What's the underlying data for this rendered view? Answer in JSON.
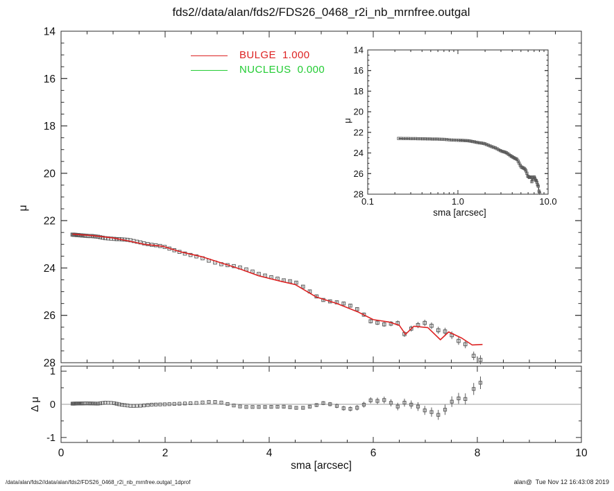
{
  "title": "fds2//data/alan/fds2/FDS26_0468_r2i_nb_mrnfree.outgal",
  "footer": {
    "left": "/data/alan/fds2//data/alan/fds2/FDS26_0468_r2i_nb_mrnfree.outgal_1dprof",
    "right": "alan@  Tue Nov 12 16:43:08 2019"
  },
  "legend": {
    "entries": [
      {
        "label": "BULGE  1.000",
        "color": "#dd2222"
      },
      {
        "label": "NUCLEUS  0.000",
        "color": "#22cc33"
      }
    ]
  },
  "colors": {
    "model": "#dd2222",
    "nucleus": "#22cc33",
    "points": "#5a5a5a",
    "inset_line": "#2a2a2a",
    "zero_line": "#999999",
    "frame": "#2b2b2b",
    "text": "#111111"
  },
  "chart_data": {
    "type": "line",
    "panels": [
      {
        "id": "main",
        "xlabel": "sma [arcsec]",
        "ylabel": "μ",
        "xlim": [
          0,
          10
        ],
        "ylim": [
          28,
          14
        ],
        "grid": false,
        "xticks": {
          "values": [
            0,
            2,
            4,
            6,
            8,
            10
          ],
          "labels": [
            "0",
            "2",
            "4",
            "6",
            "8",
            "10"
          ]
        },
        "yticks": {
          "values": [
            14,
            16,
            18,
            20,
            22,
            24,
            26,
            28
          ],
          "labels": [
            "14",
            "16",
            "18",
            "20",
            "22",
            "24",
            "26",
            "28"
          ]
        }
      },
      {
        "id": "inset",
        "xlabel": "sma [arcsec]",
        "ylabel": "μ",
        "xscale": "log",
        "xlim": [
          0.1,
          10
        ],
        "ylim": [
          28,
          14
        ],
        "grid": false,
        "xticks": {
          "values": [
            0.1,
            1.0,
            10.0
          ],
          "labels": [
            "0.1",
            "1.0",
            "10.0"
          ]
        },
        "yticks": {
          "values": [
            14,
            16,
            18,
            20,
            22,
            24,
            26,
            28
          ],
          "labels": [
            "14",
            "16",
            "18",
            "20",
            "22",
            "24",
            "26",
            "28"
          ]
        }
      },
      {
        "id": "residual",
        "xlabel": "sma [arcsec]",
        "ylabel": "Δ μ",
        "xlim": [
          0,
          10
        ],
        "ylim": [
          -1,
          1
        ],
        "grid": false,
        "xticks": {
          "values": [
            0,
            2,
            4,
            6,
            8,
            10
          ],
          "labels": [
            "0",
            "2",
            "4",
            "6",
            "8",
            "10"
          ]
        },
        "yticks": {
          "values": [
            -1,
            0,
            1
          ],
          "labels": [
            "-1",
            "0",
            "1"
          ]
        }
      }
    ],
    "series": {
      "model_bulge": {
        "name": "BULGE",
        "weight": "1.000",
        "sma": [
          0.22,
          0.6,
          1.0,
          1.3,
          1.6,
          1.95,
          2.3,
          2.7,
          3.1,
          3.45,
          3.8,
          4.2,
          4.5,
          4.9,
          5.3,
          5.7,
          6.0,
          6.3,
          6.5,
          6.62,
          6.78,
          7.05,
          7.29,
          7.45,
          7.7,
          7.9,
          8.1
        ],
        "mu": [
          22.57,
          22.63,
          22.73,
          22.86,
          23.0,
          23.08,
          23.32,
          23.52,
          23.8,
          24.05,
          24.33,
          24.55,
          24.7,
          25.22,
          25.5,
          25.85,
          26.18,
          26.28,
          26.42,
          26.8,
          26.46,
          26.52,
          27.03,
          26.7,
          26.96,
          27.25,
          27.23
        ]
      },
      "nucleus": {
        "name": "NUCLEUS",
        "weight": "0.000",
        "sma": [],
        "mu": []
      },
      "observed": {
        "sma": [
          0.22,
          0.234,
          0.249,
          0.265,
          0.282,
          0.3,
          0.319,
          0.339,
          0.36,
          0.383,
          0.407,
          0.433,
          0.46,
          0.489,
          0.52,
          0.553,
          0.588,
          0.625,
          0.665,
          0.707,
          0.752,
          0.8,
          0.85,
          0.904,
          0.961,
          1.022,
          1.068,
          1.117,
          1.168,
          1.221,
          1.276,
          1.334,
          1.395,
          1.458,
          1.525,
          1.594,
          1.667,
          1.743,
          1.822,
          1.905,
          1.992,
          2.082,
          2.177,
          2.276,
          2.38,
          2.488,
          2.601,
          2.72,
          2.84,
          2.96,
          3.08,
          3.2,
          3.32,
          3.44,
          3.56,
          3.68,
          3.8,
          3.92,
          4.04,
          4.16,
          4.28,
          4.4,
          4.52,
          4.65,
          4.78,
          4.91,
          5.04,
          5.17,
          5.3,
          5.43,
          5.56,
          5.69,
          5.82,
          5.95,
          6.08,
          6.21,
          6.34,
          6.47,
          6.6,
          6.73,
          6.86,
          6.99,
          7.12,
          7.25,
          7.38,
          7.51,
          7.64,
          7.77,
          7.93,
          8.06
        ],
        "mu": [
          22.59,
          22.59,
          22.6,
          22.6,
          22.6,
          22.61,
          22.61,
          22.61,
          22.62,
          22.62,
          22.63,
          22.63,
          22.64,
          22.64,
          22.65,
          22.65,
          22.65,
          22.66,
          22.67,
          22.68,
          22.7,
          22.72,
          22.74,
          22.75,
          22.76,
          22.77,
          22.78,
          22.78,
          22.79,
          22.8,
          22.81,
          22.83,
          22.86,
          22.89,
          22.92,
          22.96,
          22.99,
          23.02,
          23.04,
          23.07,
          23.11,
          23.18,
          23.25,
          23.32,
          23.39,
          23.45,
          23.51,
          23.59,
          23.69,
          23.77,
          23.84,
          23.88,
          23.92,
          23.98,
          24.06,
          24.15,
          24.25,
          24.32,
          24.39,
          24.45,
          24.52,
          24.56,
          24.62,
          24.79,
          24.99,
          25.2,
          25.35,
          25.41,
          25.45,
          25.5,
          25.59,
          25.74,
          25.97,
          26.25,
          26.31,
          26.38,
          26.35,
          26.33,
          26.79,
          26.56,
          26.41,
          26.32,
          26.44,
          26.63,
          26.68,
          26.84,
          27.08,
          27.22,
          27.71,
          27.88
        ],
        "delta_mu": [
          0.02,
          0.021,
          0.021,
          0.022,
          0.022,
          0.023,
          0.024,
          0.024,
          0.025,
          0.026,
          0.027,
          0.028,
          0.029,
          0.03,
          0.029,
          0.027,
          0.026,
          0.024,
          0.022,
          0.021,
          0.03,
          0.04,
          0.05,
          0.046,
          0.043,
          0.033,
          0.017,
          0.001,
          -0.014,
          -0.024,
          -0.035,
          -0.047,
          -0.048,
          -0.045,
          -0.042,
          -0.033,
          -0.022,
          -0.011,
          -0.007,
          -0.004,
          0.0,
          0.005,
          0.012,
          0.018,
          0.025,
          0.033,
          0.04,
          0.056,
          0.072,
          0.071,
          0.053,
          0.01,
          -0.035,
          -0.065,
          -0.08,
          -0.08,
          -0.08,
          -0.08,
          -0.077,
          -0.074,
          -0.071,
          -0.087,
          -0.107,
          -0.106,
          -0.07,
          -0.023,
          0.036,
          0.004,
          -0.048,
          -0.119,
          -0.137,
          -0.104,
          -0.01,
          0.12,
          0.103,
          0.129,
          0.044,
          -0.067,
          0.05,
          -0.009,
          -0.068,
          -0.183,
          -0.233,
          -0.318,
          -0.163,
          0.08,
          0.179,
          0.16,
          0.463,
          0.65
        ],
        "err": [
          0.008,
          0.008,
          0.008,
          0.008,
          0.008,
          0.008,
          0.008,
          0.008,
          0.008,
          0.008,
          0.008,
          0.008,
          0.008,
          0.008,
          0.008,
          0.008,
          0.008,
          0.008,
          0.008,
          0.008,
          0.008,
          0.008,
          0.008,
          0.008,
          0.008,
          0.01,
          0.01,
          0.01,
          0.01,
          0.01,
          0.01,
          0.01,
          0.01,
          0.01,
          0.01,
          0.01,
          0.01,
          0.01,
          0.01,
          0.01,
          0.01,
          0.01,
          0.01,
          0.01,
          0.01,
          0.01,
          0.01,
          0.015,
          0.016,
          0.017,
          0.018,
          0.02,
          0.022,
          0.024,
          0.026,
          0.028,
          0.03,
          0.032,
          0.034,
          0.036,
          0.038,
          0.042,
          0.046,
          0.05,
          0.053,
          0.057,
          0.06,
          0.064,
          0.068,
          0.072,
          0.077,
          0.082,
          0.087,
          0.092,
          0.097,
          0.103,
          0.108,
          0.114,
          0.12,
          0.125,
          0.13,
          0.135,
          0.14,
          0.15,
          0.155,
          0.16,
          0.165,
          0.17,
          0.18,
          0.19
        ]
      }
    }
  }
}
